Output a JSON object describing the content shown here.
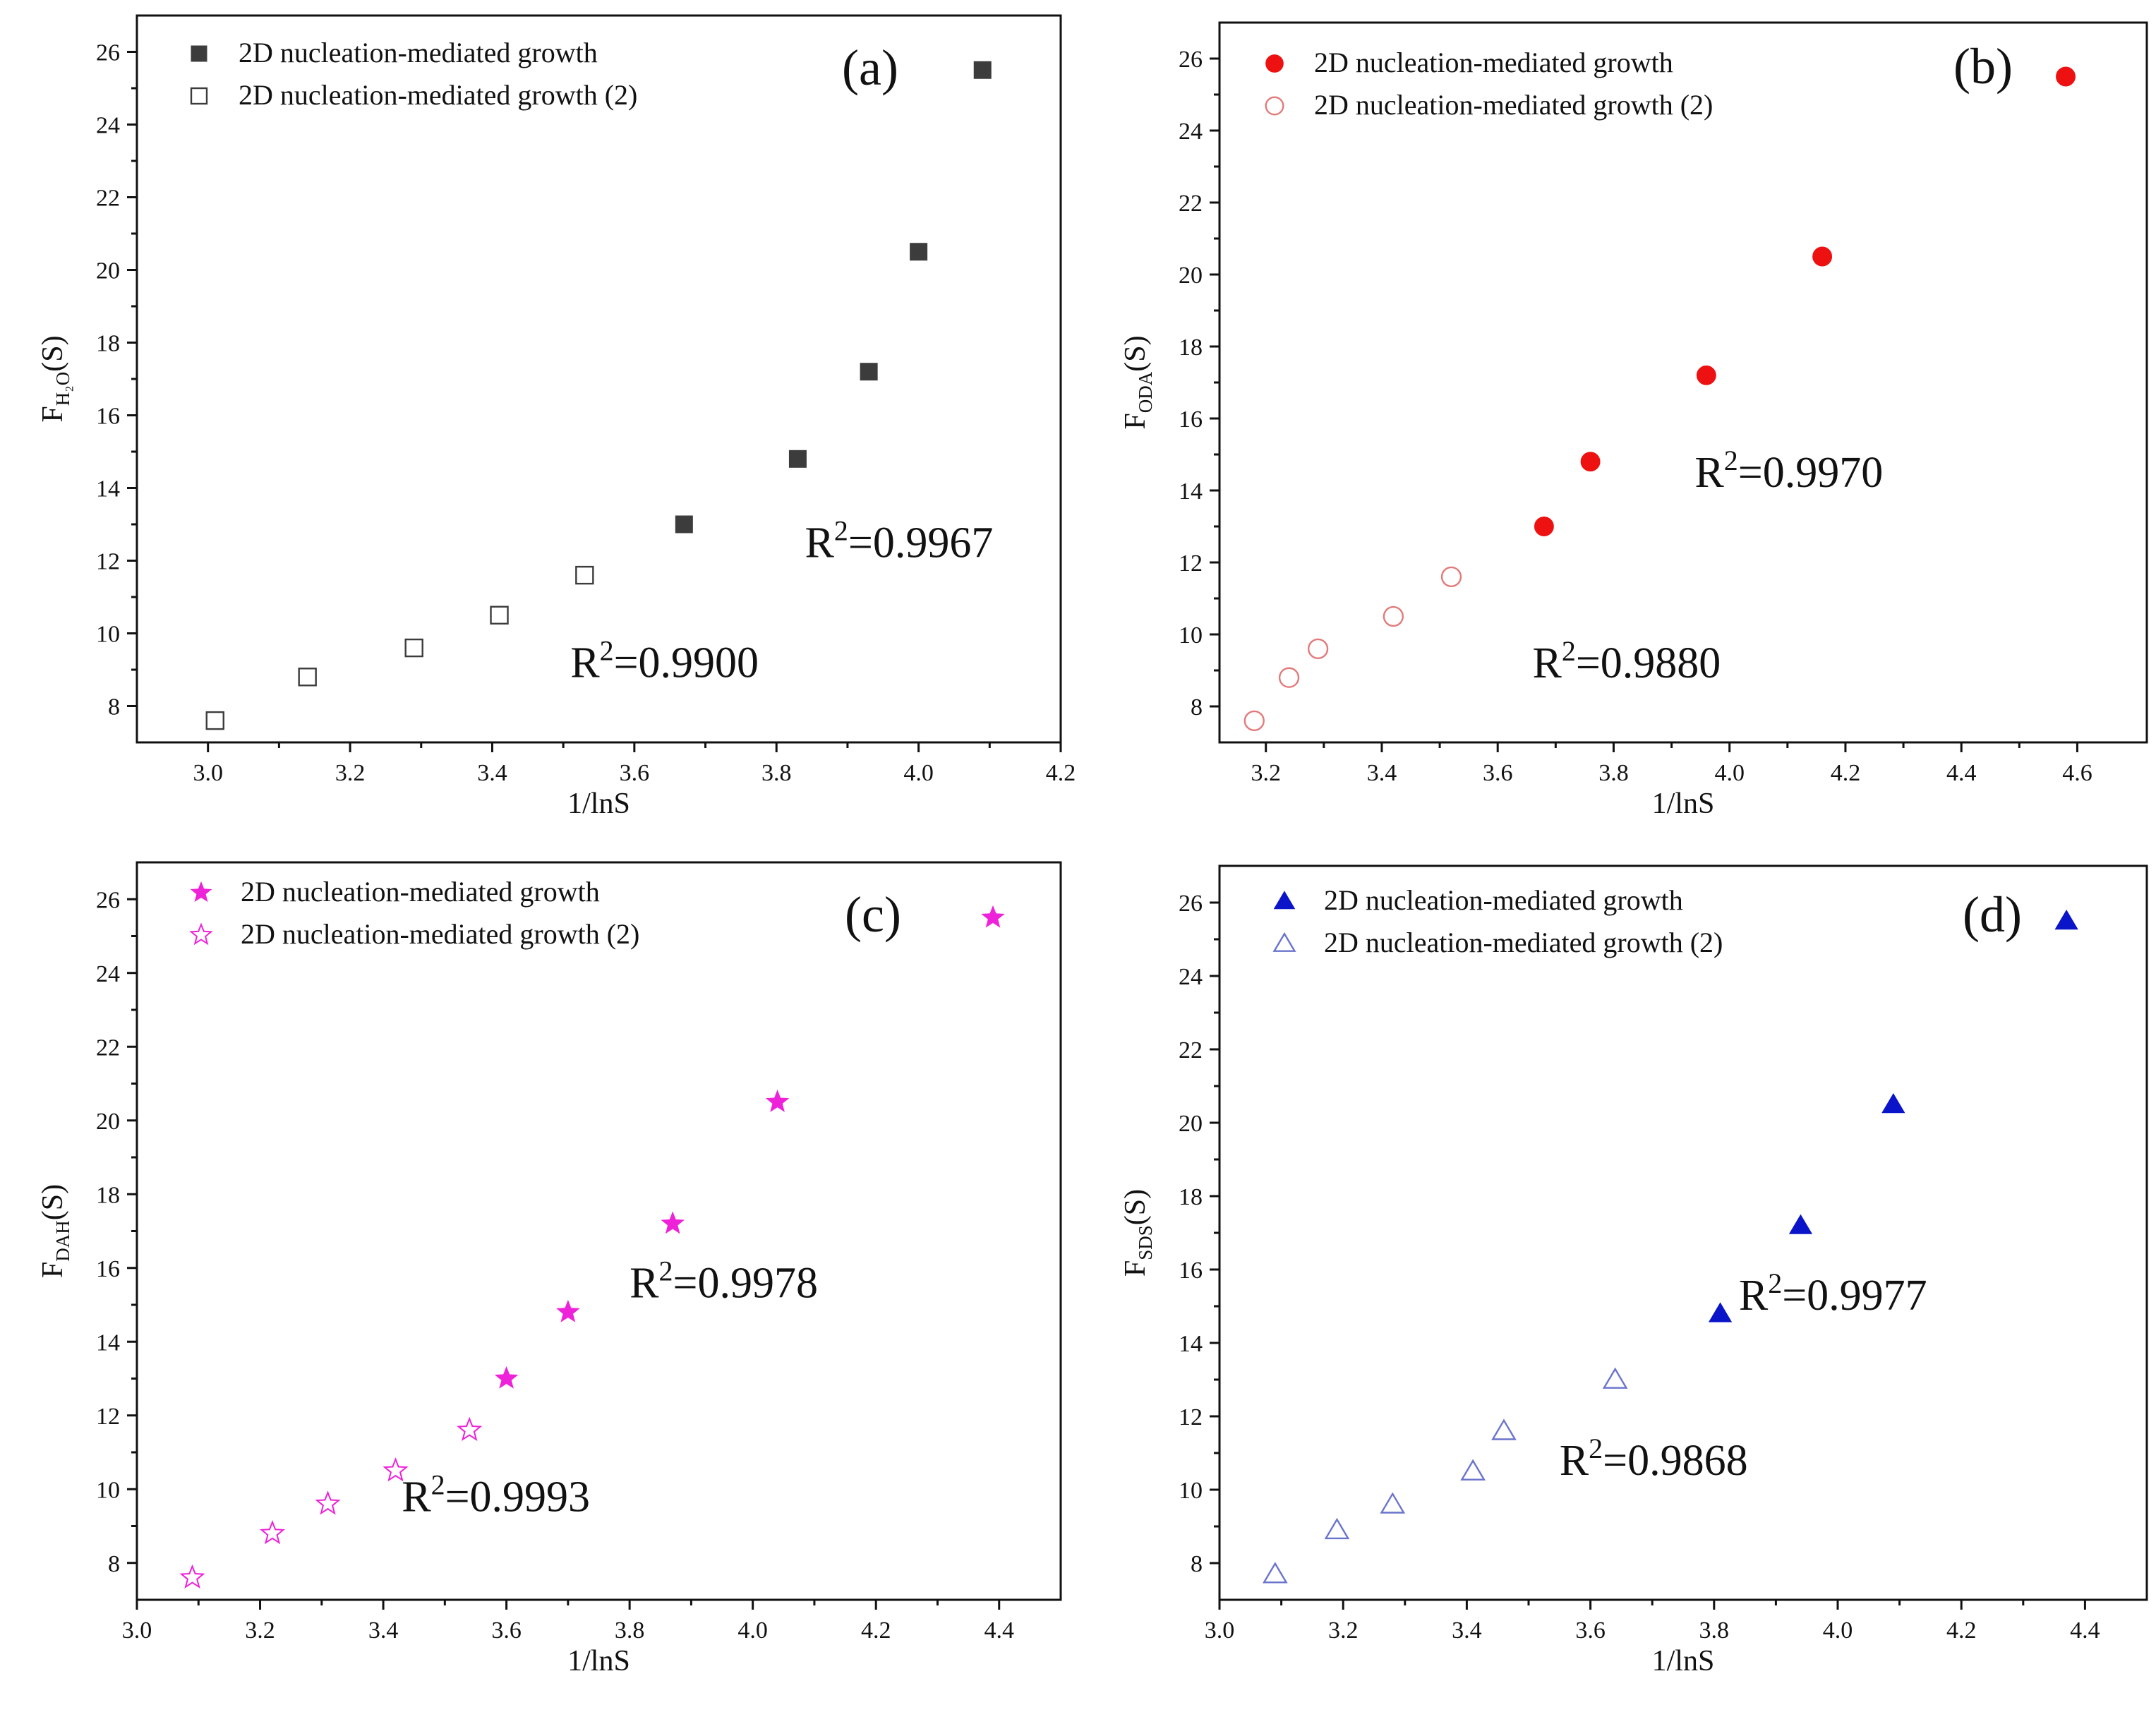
{
  "chart_data": [
    {
      "id": "a",
      "type": "scatter",
      "panel_label": "(a)",
      "xlabel": "1/lnS",
      "ylabel": "F",
      "ylabel_sub": "H₂O",
      "ylabel_suffix": "(S)",
      "xlim": [
        2.9,
        4.2
      ],
      "ylim": [
        7,
        27
      ],
      "xticks": [
        3.0,
        3.2,
        3.4,
        3.6,
        3.8,
        4.0,
        4.2
      ],
      "xtick_labels": [
        "3.0",
        "3.2",
        "3.4",
        "3.6",
        "3.8",
        "4.0",
        "4.2"
      ],
      "yticks": [
        8,
        10,
        12,
        14,
        16,
        18,
        20,
        22,
        24,
        26
      ],
      "ytick_labels": [
        "8",
        "10",
        "12",
        "14",
        "16",
        "18",
        "20",
        "22",
        "24",
        "26"
      ],
      "legend_position": "top-left",
      "series": [
        {
          "name": "2D nucleation-mediated growth",
          "marker": "square",
          "filled": true,
          "color": "#3c3c3c",
          "line_color": "#555555",
          "x": [
            3.67,
            3.83,
            3.93,
            4.0,
            4.09
          ],
          "y": [
            13.0,
            14.8,
            17.2,
            20.5,
            25.5
          ],
          "fit": "poly3",
          "annotation": {
            "base": "R",
            "sup": "2",
            "rest": "=0.9967",
            "x": 3.84,
            "y": 12.1
          }
        },
        {
          "name": "2D nucleation-mediated growth (2)",
          "marker": "square",
          "filled": false,
          "color": "#3c3c3c",
          "line_color": "#555555",
          "x": [
            3.01,
            3.14,
            3.29,
            3.41,
            3.53
          ],
          "y": [
            7.6,
            8.8,
            9.6,
            10.5,
            11.6
          ],
          "fit": "poly2",
          "annotation": {
            "base": "R",
            "sup": "2",
            "rest": "=0.9900",
            "x": 3.51,
            "y": 8.8
          }
        }
      ]
    },
    {
      "id": "b",
      "type": "scatter",
      "panel_label": "(b)",
      "xlabel": "1/lnS",
      "ylabel": "F",
      "ylabel_sub": "ODA",
      "ylabel_suffix": "(S)",
      "xlim": [
        3.12,
        4.72
      ],
      "ylim": [
        7,
        27
      ],
      "xticks": [
        3.2,
        3.4,
        3.6,
        3.8,
        4.0,
        4.2,
        4.4,
        4.6
      ],
      "xtick_labels": [
        "3.2",
        "3.4",
        "3.6",
        "3.8",
        "4.0",
        "4.2",
        "4.4",
        "4.6"
      ],
      "yticks": [
        8,
        10,
        12,
        14,
        16,
        18,
        20,
        22,
        24,
        26
      ],
      "ytick_labels": [
        "8",
        "10",
        "12",
        "14",
        "16",
        "18",
        "20",
        "22",
        "24",
        "26"
      ],
      "legend_position": "top-left",
      "series": [
        {
          "name": "2D nucleation-mediated growth",
          "marker": "circle",
          "filled": true,
          "color": "#ee1111",
          "line_color": "#e37a7a",
          "x": [
            3.68,
            3.76,
            3.96,
            4.16,
            4.58
          ],
          "y": [
            13.0,
            14.8,
            17.2,
            20.5,
            25.5
          ],
          "fit": "poly2",
          "annotation": {
            "base": "R",
            "sup": "2",
            "rest": "=0.9970",
            "x": 3.94,
            "y": 14.1
          }
        },
        {
          "name": "2D nucleation-mediated growth (2)",
          "marker": "circle",
          "filled": false,
          "color": "#e37a7a",
          "line_color": "#e37a7a",
          "x": [
            3.18,
            3.24,
            3.29,
            3.42,
            3.52
          ],
          "y": [
            7.6,
            8.8,
            9.6,
            10.5,
            11.6
          ],
          "fit": "poly2",
          "annotation": {
            "base": "R",
            "sup": "2",
            "rest": "=0.9880",
            "x": 3.66,
            "y": 8.8
          }
        }
      ]
    },
    {
      "id": "c",
      "type": "scatter",
      "panel_label": "(c)",
      "xlabel": "1/lnS",
      "ylabel": "F",
      "ylabel_sub": "DAH",
      "ylabel_suffix": "(S)",
      "xlim": [
        3.0,
        4.5
      ],
      "ylim": [
        7,
        27
      ],
      "xticks": [
        3.0,
        3.2,
        3.4,
        3.6,
        3.8,
        4.0,
        4.2,
        4.4
      ],
      "xtick_labels": [
        "3.0",
        "3.2",
        "3.4",
        "3.6",
        "3.8",
        "4.0",
        "4.2",
        "4.4"
      ],
      "yticks": [
        8,
        10,
        12,
        14,
        16,
        18,
        20,
        22,
        24,
        26
      ],
      "ytick_labels": [
        "8",
        "10",
        "12",
        "14",
        "16",
        "18",
        "20",
        "22",
        "24",
        "26"
      ],
      "legend_position": "top-left",
      "series": [
        {
          "name": "2D nucleation-mediated growth",
          "marker": "star",
          "filled": true,
          "color": "#ee22d8",
          "line_color": "#ee55e0",
          "x": [
            3.6,
            3.7,
            3.87,
            4.04,
            4.39
          ],
          "y": [
            13.0,
            14.8,
            17.2,
            20.5,
            25.5
          ],
          "fit": "linear",
          "annotation": {
            "base": "R",
            "sup": "2",
            "rest": "=0.9978",
            "x": 3.8,
            "y": 15.2
          }
        },
        {
          "name": "2D nucleation-mediated growth (2)",
          "marker": "star",
          "filled": false,
          "color": "#ee22d8",
          "line_color": "#ee55e0",
          "x": [
            3.09,
            3.22,
            3.31,
            3.42,
            3.54
          ],
          "y": [
            7.6,
            8.8,
            9.6,
            10.5,
            11.6
          ],
          "fit": "linear",
          "annotation": {
            "base": "R",
            "sup": "2",
            "rest": "=0.9993",
            "x": 3.43,
            "y": 9.4
          }
        }
      ]
    },
    {
      "id": "d",
      "type": "scatter",
      "panel_label": "(d)",
      "xlabel": "1/lnS",
      "ylabel": "F",
      "ylabel_sub": "SDS",
      "ylabel_suffix": "(S)",
      "xlim": [
        3.0,
        4.5
      ],
      "ylim": [
        7,
        27
      ],
      "xticks": [
        3.0,
        3.2,
        3.4,
        3.6,
        3.8,
        4.0,
        4.2,
        4.4
      ],
      "xtick_labels": [
        "3.0",
        "3.2",
        "3.4",
        "3.6",
        "3.8",
        "4.0",
        "4.2",
        "4.4"
      ],
      "yticks": [
        8,
        10,
        12,
        14,
        16,
        18,
        20,
        22,
        24,
        26
      ],
      "ytick_labels": [
        "8",
        "10",
        "12",
        "14",
        "16",
        "18",
        "20",
        "22",
        "24",
        "26"
      ],
      "legend_position": "top-left",
      "series": [
        {
          "name": "2D nucleation-mediated growth",
          "marker": "triangle",
          "filled": true,
          "color": "#0a14c8",
          "line_color": "#6a74cc",
          "x": [
            3.81,
            3.94,
            4.09,
            4.37
          ],
          "y": [
            14.8,
            17.2,
            20.5,
            25.5
          ],
          "fit": "linear",
          "annotation": {
            "base": "R",
            "sup": "2",
            "rest": "=0.9977",
            "x": 3.84,
            "y": 14.9
          }
        },
        {
          "name": "2D nucleation-mediated growth (2)",
          "marker": "triangle",
          "filled": false,
          "color": "#6a74cc",
          "line_color": "#6a74cc",
          "x": [
            3.09,
            3.19,
            3.28,
            3.41,
            3.46,
            3.64
          ],
          "y": [
            7.7,
            8.9,
            9.6,
            10.5,
            11.6,
            13.0
          ],
          "fit": "linear",
          "annotation": {
            "base": "R",
            "sup": "2",
            "rest": "=0.9868",
            "x": 3.55,
            "y": 10.4
          }
        }
      ]
    }
  ]
}
